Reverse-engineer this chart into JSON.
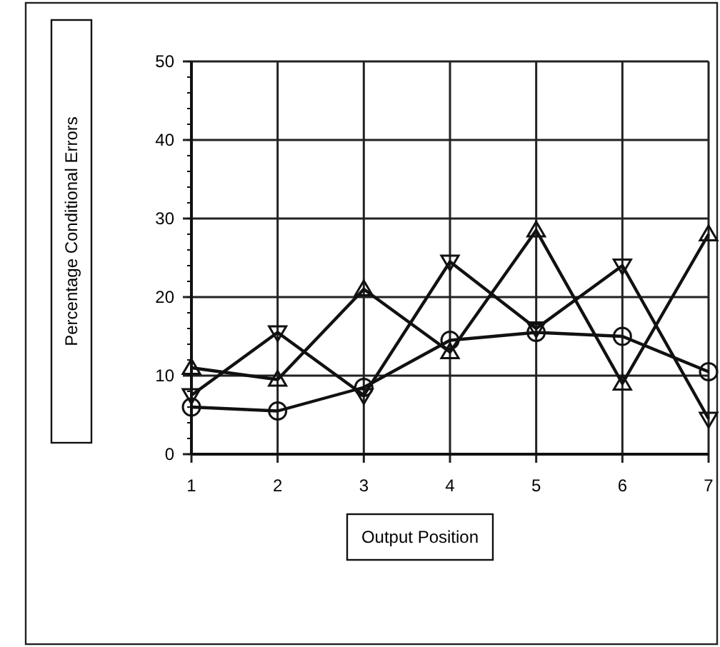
{
  "chart_data": {
    "type": "line",
    "xlabel": "Output Position",
    "ylabel": "Percentage Conditional Errors",
    "x": [
      1,
      2,
      3,
      4,
      5,
      6,
      7
    ],
    "xlim": [
      1,
      7
    ],
    "xticks": [
      1,
      2,
      3,
      4,
      5,
      6,
      7
    ],
    "ylim": [
      0,
      50
    ],
    "yticks": [
      0,
      10,
      20,
      30,
      40,
      50
    ],
    "grid": true,
    "line_style": "solid",
    "series": [
      {
        "color": "#111111",
        "marker": "circle",
        "values": [
          6,
          5.5,
          8.5,
          14.5,
          15.5,
          15,
          10.5
        ]
      },
      {
        "color": "#111111",
        "marker": "triangle-down",
        "values": [
          7.5,
          15.5,
          7.5,
          24.5,
          16,
          24,
          4.5
        ]
      },
      {
        "color": "#111111",
        "marker": "triangle",
        "values": [
          11,
          9.5,
          21,
          13,
          28.5,
          9,
          28
        ]
      }
    ]
  }
}
